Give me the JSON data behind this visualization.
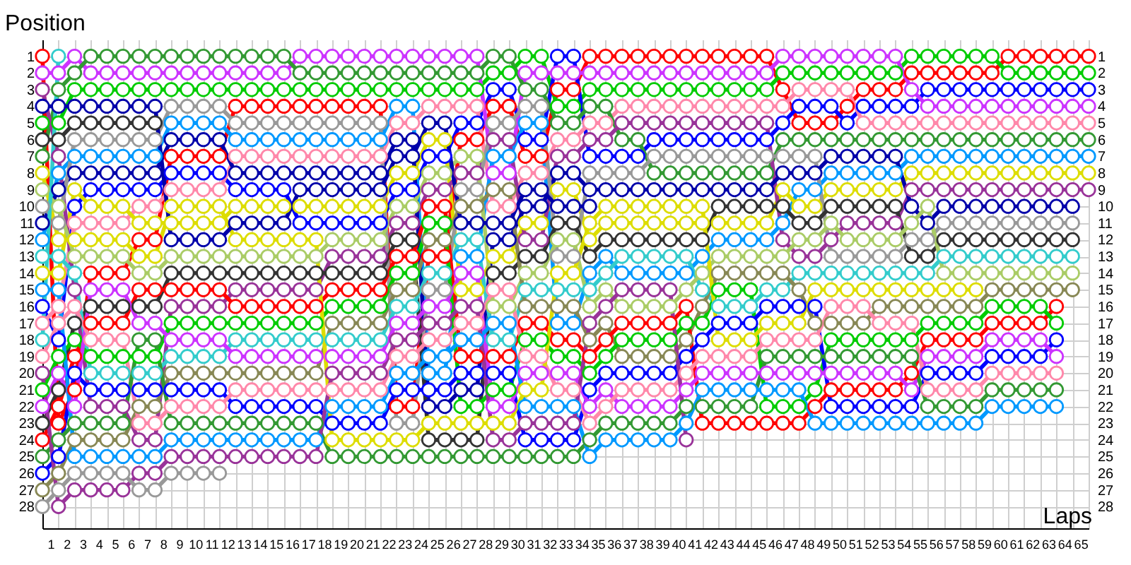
{
  "chart_data": {
    "type": "line",
    "xlabel": "Laps",
    "ylabel": "Position",
    "x": [
      0,
      1,
      2,
      3,
      4,
      5,
      6,
      7,
      8,
      9,
      10,
      11,
      12,
      13,
      14,
      15,
      16,
      17,
      18,
      19,
      20,
      21,
      22,
      23,
      24,
      25,
      26,
      27,
      28,
      29,
      30,
      31,
      32,
      33,
      34,
      35,
      36,
      37,
      38,
      39,
      40,
      41,
      42,
      43,
      44,
      45,
      46,
      47,
      48,
      49,
      50,
      51,
      52,
      53,
      54,
      55,
      56,
      57,
      58,
      59,
      60,
      61,
      62,
      63,
      64,
      65
    ],
    "xlim": [
      0,
      65
    ],
    "xticks": [
      {
        "value": 0,
        "label": null
      },
      {
        "value": 0.5,
        "label": "1"
      },
      {
        "value": 1,
        "label": null
      },
      {
        "value": 1.5,
        "label": "2"
      },
      {
        "value": 2,
        "label": null
      },
      {
        "value": 2.5,
        "label": "3"
      },
      {
        "value": 3,
        "label": null
      },
      {
        "value": 3.5,
        "label": "4"
      },
      {
        "value": 4,
        "label": null
      },
      {
        "value": 4.5,
        "label": "5"
      },
      {
        "value": 5,
        "label": null
      },
      {
        "value": 5.5,
        "label": "6"
      },
      {
        "value": 6,
        "label": null
      },
      {
        "value": 6.5,
        "label": "7"
      },
      {
        "value": 7,
        "label": null
      },
      {
        "value": 7.5,
        "label": "8"
      },
      {
        "value": 8,
        "label": null
      },
      {
        "value": 8.5,
        "label": "9"
      },
      {
        "value": 9,
        "label": null
      },
      {
        "value": 9.5,
        "label": "10"
      },
      {
        "value": 10,
        "label": null
      },
      {
        "value": 10.5,
        "label": "11"
      },
      {
        "value": 11,
        "label": null
      },
      {
        "value": 11.5,
        "label": "12"
      },
      {
        "value": 12,
        "label": null
      },
      {
        "value": 12.5,
        "label": "13"
      },
      {
        "value": 13,
        "label": null
      },
      {
        "value": 13.5,
        "label": "14"
      },
      {
        "value": 14,
        "label": null
      },
      {
        "value": 14.5,
        "label": "15"
      },
      {
        "value": 15,
        "label": null
      },
      {
        "value": 15.5,
        "label": "16"
      },
      {
        "value": 16,
        "label": null
      },
      {
        "value": 16.5,
        "label": "17"
      },
      {
        "value": 17,
        "label": null
      },
      {
        "value": 17.5,
        "label": "18"
      },
      {
        "value": 18,
        "label": null
      },
      {
        "value": 18.5,
        "label": "19"
      },
      {
        "value": 19,
        "label": null
      },
      {
        "value": 19.5,
        "label": "20"
      },
      {
        "value": 20,
        "label": null
      },
      {
        "value": 20.5,
        "label": "21"
      },
      {
        "value": 21,
        "label": null
      },
      {
        "value": 21.5,
        "label": "22"
      },
      {
        "value": 22,
        "label": null
      },
      {
        "value": 22.5,
        "label": "23"
      },
      {
        "value": 23,
        "label": null
      },
      {
        "value": 23.5,
        "label": "24"
      },
      {
        "value": 24,
        "label": null
      },
      {
        "value": 24.5,
        "label": "25"
      },
      {
        "value": 25,
        "label": null
      },
      {
        "value": 25.5,
        "label": "26"
      },
      {
        "value": 26,
        "label": null
      },
      {
        "value": 26.5,
        "label": "27"
      },
      {
        "value": 27,
        "label": null
      },
      {
        "value": 27.5,
        "label": "28"
      },
      {
        "value": 28,
        "label": null
      },
      {
        "value": 28.5,
        "label": "29"
      },
      {
        "value": 29,
        "label": null
      },
      {
        "value": 29.5,
        "label": "30"
      },
      {
        "value": 30,
        "label": null
      },
      {
        "value": 30.5,
        "label": "31"
      },
      {
        "value": 31,
        "label": null
      },
      {
        "value": 31.5,
        "label": "32"
      },
      {
        "value": 32,
        "label": null
      },
      {
        "value": 32.5,
        "label": "33"
      },
      {
        "value": 33,
        "label": null
      },
      {
        "value": 33.5,
        "label": "34"
      },
      {
        "value": 34,
        "label": null
      },
      {
        "value": 34.5,
        "label": "35"
      },
      {
        "value": 35,
        "label": null
      },
      {
        "value": 35.5,
        "label": "36"
      },
      {
        "value": 36,
        "label": null
      },
      {
        "value": 36.5,
        "label": "37"
      },
      {
        "value": 37,
        "label": null
      },
      {
        "value": 37.5,
        "label": "38"
      },
      {
        "value": 38,
        "label": null
      },
      {
        "value": 38.5,
        "label": "39"
      },
      {
        "value": 39,
        "label": null
      },
      {
        "value": 39.5,
        "label": "40"
      },
      {
        "value": 40,
        "label": null
      },
      {
        "value": 40.5,
        "label": "41"
      },
      {
        "value": 41,
        "label": null
      },
      {
        "value": 41.5,
        "label": "42"
      },
      {
        "value": 42,
        "label": null
      },
      {
        "value": 42.5,
        "label": "43"
      },
      {
        "value": 43,
        "label": null
      },
      {
        "value": 43.5,
        "label": "44"
      },
      {
        "value": 44,
        "label": null
      },
      {
        "value": 44.5,
        "label": "45"
      },
      {
        "value": 45,
        "label": null
      },
      {
        "value": 45.5,
        "label": "46"
      },
      {
        "value": 46,
        "label": null
      },
      {
        "value": 46.5,
        "label": "47"
      },
      {
        "value": 47,
        "label": null
      },
      {
        "value": 47.5,
        "label": "48"
      },
      {
        "value": 48,
        "label": null
      },
      {
        "value": 48.5,
        "label": "49"
      },
      {
        "value": 49,
        "label": null
      },
      {
        "value": 49.5,
        "label": "50"
      },
      {
        "value": 50,
        "label": null
      },
      {
        "value": 50.5,
        "label": "51"
      },
      {
        "value": 51,
        "label": null
      },
      {
        "value": 51.5,
        "label": "52"
      },
      {
        "value": 52,
        "label": null
      },
      {
        "value": 52.5,
        "label": "53"
      },
      {
        "value": 53,
        "label": null
      },
      {
        "value": 53.5,
        "label": "54"
      },
      {
        "value": 54,
        "label": null
      },
      {
        "value": 54.5,
        "label": "55"
      },
      {
        "value": 55,
        "label": null
      },
      {
        "value": 55.5,
        "label": "56"
      },
      {
        "value": 56,
        "label": null
      },
      {
        "value": 56.5,
        "label": "57"
      },
      {
        "value": 57,
        "label": null
      },
      {
        "value": 57.5,
        "label": "58"
      },
      {
        "value": 58,
        "label": null
      },
      {
        "value": 58.5,
        "label": "59"
      },
      {
        "value": 59,
        "label": null
      },
      {
        "value": 59.5,
        "label": "60"
      },
      {
        "value": 60,
        "label": null
      },
      {
        "value": 60.5,
        "label": "61"
      },
      {
        "value": 61,
        "label": null
      },
      {
        "value": 61.5,
        "label": "62"
      },
      {
        "value": 62,
        "label": null
      },
      {
        "value": 62.5,
        "label": "63"
      },
      {
        "value": 63,
        "label": null
      },
      {
        "value": 63.5,
        "label": "64"
      },
      {
        "value": 64,
        "label": null
      },
      {
        "value": 64.5,
        "label": "65"
      },
      {
        "value": 65,
        "label": null
      }
    ],
    "ylim": [
      29.3,
      0
    ],
    "yticks": [
      1,
      2,
      3,
      4,
      5,
      6,
      7,
      8,
      9,
      10,
      11,
      12,
      13,
      14,
      15,
      16,
      17,
      18,
      19,
      20,
      21,
      22,
      23,
      24,
      25,
      26,
      27,
      28
    ],
    "y2lim": [
      29.3,
      0
    ],
    "y2ticks": [
      1,
      2,
      3,
      4,
      5,
      6,
      7,
      8,
      9,
      10,
      11,
      12,
      13,
      14,
      15,
      16,
      17,
      18,
      19,
      20,
      21,
      22,
      23,
      24,
      25,
      26,
      27,
      28
    ],
    "grid": true,
    "marker": "circle",
    "line_style": "solid",
    "series": [
      {
        "color": "#ff0000",
        "values": [
          1,
          23,
          21,
          14,
          14,
          14,
          12,
          12,
          7,
          7,
          7,
          7,
          4,
          4,
          4,
          4,
          4,
          4,
          4,
          4,
          4,
          4,
          22,
          22,
          13,
          13,
          6,
          6,
          4,
          4,
          7,
          7,
          3,
          3,
          1,
          1,
          1,
          1,
          1,
          1,
          1,
          1,
          1,
          1,
          1,
          1,
          3,
          5,
          5,
          5,
          4,
          3,
          3,
          3,
          2,
          2,
          2,
          2,
          2,
          2,
          1,
          1,
          1,
          1,
          1,
          1
        ]
      },
      {
        "color": "#00cc00",
        "values": [
          5,
          5,
          3,
          3,
          3,
          3,
          3,
          3,
          3,
          3,
          3,
          3,
          3,
          3,
          3,
          3,
          3,
          3,
          3,
          3,
          3,
          3,
          3,
          3,
          3,
          3,
          3,
          3,
          2,
          2,
          1,
          1,
          4,
          4,
          3,
          3,
          3,
          3,
          3,
          3,
          3,
          3,
          3,
          3,
          3,
          3,
          2,
          2,
          2,
          2,
          2,
          2,
          2,
          2,
          1,
          1,
          1,
          1,
          1,
          1,
          2,
          2,
          2,
          2,
          2,
          2
        ]
      },
      {
        "color": "#0000ff",
        "values": [
          16,
          18,
          10,
          9,
          9,
          9,
          9,
          9,
          8,
          8,
          8,
          8,
          9,
          9,
          9,
          9,
          11,
          11,
          11,
          11,
          11,
          11,
          9,
          9,
          7,
          7,
          5,
          5,
          3,
          3,
          6,
          6,
          1,
          1,
          7,
          7,
          7,
          7,
          6,
          6,
          6,
          6,
          6,
          6,
          6,
          6,
          5,
          4,
          4,
          4,
          5,
          4,
          4,
          4,
          4,
          3,
          3,
          3,
          3,
          3,
          3,
          3,
          3,
          3,
          3,
          3
        ]
      },
      {
        "color": "#cc33ff",
        "values": [
          2,
          2,
          1,
          2,
          2,
          2,
          2,
          2,
          2,
          2,
          2,
          2,
          2,
          2,
          2,
          2,
          1,
          1,
          1,
          1,
          1,
          1,
          1,
          1,
          1,
          1,
          1,
          1,
          8,
          8,
          2,
          2,
          2,
          2,
          2,
          2,
          2,
          2,
          2,
          2,
          2,
          2,
          2,
          2,
          2,
          2,
          1,
          1,
          1,
          1,
          1,
          1,
          1,
          1,
          3,
          4,
          4,
          4,
          4,
          4,
          4,
          4,
          4,
          4,
          4,
          4
        ]
      },
      {
        "color": "#ff88aa",
        "values": [
          17,
          16,
          11,
          11,
          11,
          11,
          10,
          10,
          9,
          9,
          9,
          9,
          7,
          7,
          7,
          7,
          7,
          7,
          7,
          7,
          7,
          7,
          5,
          5,
          4,
          4,
          4,
          4,
          10,
          10,
          8,
          8,
          6,
          6,
          5,
          5,
          4,
          4,
          4,
          4,
          4,
          4,
          4,
          4,
          4,
          4,
          4,
          3,
          3,
          3,
          3,
          5,
          5,
          5,
          5,
          5,
          5,
          5,
          5,
          5,
          5,
          5,
          5,
          5,
          5,
          5
        ]
      },
      {
        "color": "#339933",
        "values": [
          7,
          3,
          2,
          1,
          1,
          1,
          1,
          1,
          1,
          1,
          1,
          1,
          1,
          1,
          1,
          1,
          2,
          2,
          2,
          2,
          2,
          2,
          2,
          2,
          2,
          2,
          2,
          2,
          1,
          1,
          3,
          3,
          5,
          5,
          4,
          4,
          6,
          6,
          8,
          8,
          8,
          8,
          8,
          8,
          8,
          8,
          6,
          6,
          6,
          6,
          6,
          6,
          6,
          6,
          6,
          6,
          6,
          6,
          6,
          6,
          6,
          6,
          6,
          6,
          6,
          6
        ]
      },
      {
        "color": "#0099ff",
        "values": [
          12,
          8,
          7,
          7,
          7,
          7,
          7,
          7,
          5,
          5,
          5,
          5,
          6,
          6,
          6,
          6,
          6,
          6,
          6,
          6,
          6,
          6,
          4,
          4,
          20,
          20,
          13,
          13,
          7,
          7,
          5,
          5,
          17,
          17,
          14,
          13,
          14,
          14,
          14,
          14,
          14,
          13,
          12,
          12,
          12,
          12,
          11,
          9,
          9,
          8,
          8,
          8,
          8,
          8,
          7,
          7,
          7,
          7,
          7,
          7,
          7,
          7,
          7,
          7,
          7,
          7
        ]
      },
      {
        "color": "#dddd00",
        "values": [
          14,
          14,
          9,
          10,
          10,
          10,
          11,
          11,
          11,
          11,
          11,
          11,
          10,
          10,
          10,
          10,
          10,
          10,
          10,
          10,
          10,
          10,
          8,
          8,
          6,
          6,
          15,
          15,
          13,
          13,
          11,
          11,
          9,
          9,
          12,
          11,
          11,
          11,
          11,
          11,
          11,
          11,
          11,
          11,
          11,
          11,
          9,
          10,
          10,
          9,
          9,
          9,
          9,
          9,
          8,
          8,
          8,
          8,
          8,
          8,
          8,
          8,
          8,
          8,
          8,
          8
        ]
      },
      {
        "color": "#993399",
        "values": [
          3,
          7,
          15,
          22,
          22,
          22,
          24,
          24,
          16,
          16,
          16,
          16,
          15,
          15,
          15,
          15,
          15,
          15,
          13,
          13,
          13,
          13,
          11,
          11,
          9,
          9,
          8,
          8,
          6,
          6,
          12,
          12,
          7,
          7,
          6,
          6,
          5,
          5,
          5,
          5,
          5,
          5,
          5,
          5,
          5,
          5,
          12,
          13,
          13,
          12,
          11,
          11,
          11,
          11,
          9,
          9,
          9,
          9,
          9,
          9,
          9,
          9,
          9,
          9,
          9,
          9
        ]
      },
      {
        "color": "#0000aa",
        "values": [
          11,
          9,
          8,
          8,
          8,
          8,
          8,
          8,
          6,
          6,
          6,
          6,
          8,
          8,
          8,
          8,
          8,
          8,
          8,
          8,
          8,
          8,
          6,
          6,
          22,
          22,
          21,
          21,
          12,
          12,
          10,
          10,
          8,
          8,
          9,
          9,
          9,
          9,
          9,
          9,
          9,
          9,
          9,
          9,
          9,
          9,
          8,
          8,
          8,
          7,
          7,
          7,
          7,
          7,
          10,
          11,
          10,
          10,
          10,
          10,
          10,
          10,
          10,
          10,
          10,
          null
        ]
      },
      {
        "color": "#999999",
        "values": [
          10,
          11,
          6,
          6,
          6,
          6,
          6,
          6,
          4,
          4,
          4,
          4,
          5,
          5,
          5,
          5,
          5,
          5,
          5,
          5,
          5,
          5,
          23,
          23,
          15,
          15,
          9,
          9,
          5,
          5,
          4,
          4,
          13,
          13,
          8,
          8,
          8,
          8,
          7,
          7,
          7,
          7,
          7,
          7,
          7,
          7,
          7,
          7,
          7,
          13,
          13,
          13,
          13,
          13,
          12,
          12,
          11,
          11,
          11,
          11,
          11,
          11,
          11,
          11,
          11,
          null
        ]
      },
      {
        "color": "#333333",
        "values": [
          23,
          21,
          17,
          16,
          16,
          16,
          16,
          16,
          14,
          14,
          14,
          14,
          14,
          14,
          14,
          14,
          14,
          14,
          14,
          14,
          14,
          14,
          12,
          12,
          24,
          24,
          24,
          24,
          14,
          14,
          13,
          13,
          11,
          11,
          13,
          12,
          12,
          12,
          12,
          12,
          12,
          12,
          10,
          10,
          10,
          10,
          10,
          11,
          11,
          10,
          10,
          10,
          10,
          10,
          13,
          13,
          12,
          12,
          12,
          12,
          12,
          12,
          12,
          12,
          12,
          null
        ]
      },
      {
        "color": "#33cccc",
        "values": [
          13,
          13,
          14,
          20,
          20,
          20,
          20,
          20,
          19,
          19,
          19,
          19,
          18,
          18,
          18,
          18,
          18,
          18,
          18,
          18,
          18,
          18,
          16,
          16,
          14,
          14,
          12,
          12,
          18,
          18,
          15,
          15,
          15,
          15,
          15,
          14,
          13,
          13,
          13,
          13,
          13,
          15,
          16,
          16,
          16,
          15,
          15,
          14,
          14,
          14,
          14,
          14,
          14,
          14,
          14,
          14,
          13,
          13,
          13,
          13,
          13,
          13,
          13,
          13,
          13,
          null
        ]
      },
      {
        "color": "#aacc66",
        "values": [
          9,
          10,
          13,
          13,
          13,
          13,
          14,
          14,
          13,
          13,
          13,
          13,
          13,
          13,
          13,
          13,
          13,
          13,
          12,
          12,
          12,
          12,
          10,
          10,
          8,
          8,
          7,
          7,
          16,
          16,
          14,
          14,
          12,
          12,
          16,
          15,
          16,
          16,
          16,
          16,
          15,
          14,
          13,
          13,
          13,
          13,
          13,
          12,
          12,
          11,
          12,
          12,
          12,
          12,
          11,
          10,
          14,
          14,
          14,
          14,
          14,
          14,
          14,
          14,
          14,
          null
        ]
      },
      {
        "color": "#888855",
        "values": [
          27,
          26,
          24,
          24,
          24,
          24,
          22,
          22,
          20,
          20,
          20,
          20,
          20,
          20,
          20,
          20,
          20,
          20,
          17,
          17,
          17,
          17,
          15,
          15,
          12,
          12,
          10,
          10,
          9,
          9,
          16,
          16,
          16,
          16,
          18,
          17,
          19,
          19,
          19,
          19,
          18,
          16,
          14,
          14,
          14,
          14,
          14,
          15,
          17,
          17,
          17,
          17,
          16,
          16,
          16,
          16,
          16,
          16,
          16,
          15,
          15,
          15,
          15,
          15,
          15,
          null
        ]
      },
      {
        "color": "#ff0000",
        "values": [
          24,
          22,
          19,
          17,
          17,
          17,
          15,
          15,
          15,
          15,
          15,
          15,
          16,
          16,
          16,
          16,
          16,
          16,
          15,
          15,
          15,
          15,
          13,
          13,
          10,
          10,
          19,
          19,
          19,
          19,
          17,
          17,
          18,
          18,
          19,
          18,
          17,
          17,
          17,
          17,
          16,
          23,
          23,
          23,
          23,
          23,
          23,
          23,
          22,
          21,
          21,
          21,
          21,
          21,
          20,
          18,
          18,
          18,
          18,
          17,
          17,
          17,
          17,
          16,
          null,
          null
        ]
      },
      {
        "color": "#00cc00",
        "values": [
          21,
          19,
          18,
          19,
          19,
          19,
          19,
          19,
          17,
          17,
          17,
          17,
          17,
          17,
          17,
          17,
          17,
          17,
          16,
          16,
          16,
          16,
          14,
          14,
          11,
          11,
          22,
          22,
          21,
          21,
          18,
          18,
          19,
          19,
          20,
          19,
          18,
          18,
          18,
          18,
          17,
          17,
          15,
          15,
          15,
          22,
          22,
          22,
          21,
          18,
          18,
          18,
          18,
          18,
          18,
          17,
          17,
          17,
          17,
          16,
          16,
          16,
          16,
          17,
          null,
          null
        ]
      },
      {
        "color": "#0000ff",
        "values": [
          26,
          25,
          20,
          21,
          21,
          21,
          21,
          21,
          21,
          21,
          21,
          21,
          22,
          22,
          22,
          22,
          22,
          22,
          23,
          23,
          23,
          23,
          21,
          21,
          21,
          21,
          20,
          20,
          20,
          20,
          24,
          24,
          24,
          24,
          21,
          20,
          20,
          20,
          20,
          20,
          19,
          18,
          17,
          17,
          17,
          16,
          16,
          16,
          16,
          22,
          22,
          22,
          22,
          22,
          22,
          20,
          20,
          20,
          20,
          19,
          19,
          19,
          19,
          18,
          null,
          null
        ]
      },
      {
        "color": "#cc33ff",
        "values": [
          22,
          20,
          22,
          15,
          15,
          15,
          17,
          17,
          18,
          18,
          18,
          18,
          19,
          19,
          19,
          19,
          19,
          19,
          19,
          19,
          19,
          19,
          17,
          17,
          16,
          16,
          14,
          14,
          22,
          22,
          20,
          20,
          20,
          20,
          22,
          21,
          22,
          22,
          22,
          22,
          21,
          20,
          20,
          20,
          20,
          20,
          20,
          20,
          20,
          20,
          20,
          20,
          20,
          20,
          21,
          19,
          19,
          19,
          19,
          18,
          18,
          18,
          18,
          19,
          null,
          null
        ]
      },
      {
        "color": "#ff88aa",
        "values": [
          19,
          17,
          16,
          18,
          18,
          18,
          23,
          23,
          22,
          22,
          22,
          22,
          21,
          21,
          21,
          21,
          21,
          21,
          21,
          21,
          21,
          21,
          19,
          19,
          18,
          18,
          17,
          17,
          15,
          15,
          19,
          19,
          21,
          21,
          23,
          22,
          21,
          21,
          21,
          21,
          20,
          19,
          19,
          19,
          19,
          18,
          18,
          18,
          18,
          16,
          16,
          16,
          17,
          17,
          17,
          21,
          21,
          21,
          21,
          20,
          20,
          20,
          20,
          20,
          null,
          null
        ]
      },
      {
        "color": "#339933",
        "values": [
          25,
          24,
          23,
          23,
          23,
          23,
          18,
          18,
          23,
          23,
          23,
          23,
          23,
          23,
          23,
          23,
          23,
          23,
          25,
          25,
          25,
          25,
          25,
          25,
          25,
          25,
          25,
          25,
          25,
          25,
          25,
          25,
          25,
          25,
          24,
          23,
          23,
          23,
          23,
          23,
          22,
          22,
          22,
          22,
          22,
          19,
          19,
          19,
          19,
          19,
          19,
          19,
          19,
          19,
          19,
          22,
          22,
          22,
          22,
          21,
          21,
          21,
          21,
          21,
          null,
          null
        ]
      },
      {
        "color": "#0099ff",
        "values": [
          15,
          15,
          25,
          25,
          25,
          25,
          25,
          25,
          24,
          24,
          24,
          24,
          24,
          24,
          24,
          24,
          24,
          24,
          22,
          22,
          22,
          22,
          20,
          20,
          19,
          19,
          18,
          18,
          17,
          17,
          22,
          22,
          22,
          22,
          25,
          24,
          24,
          24,
          24,
          24,
          23,
          21,
          21,
          21,
          21,
          21,
          21,
          21,
          23,
          23,
          23,
          23,
          23,
          23,
          23,
          23,
          23,
          23,
          23,
          22,
          22,
          22,
          22,
          22,
          null,
          null
        ]
      },
      {
        "color": "#dddd00",
        "values": [
          8,
          12,
          12,
          12,
          12,
          12,
          13,
          13,
          10,
          10,
          10,
          10,
          12,
          12,
          12,
          12,
          12,
          12,
          24,
          24,
          24,
          24,
          24,
          24,
          23,
          23,
          23,
          23,
          23,
          23,
          21,
          21,
          14,
          14,
          11,
          10,
          10,
          10,
          10,
          10,
          10,
          10,
          18,
          18,
          18,
          17,
          17,
          17,
          15,
          15,
          15,
          15,
          15,
          15,
          15,
          15,
          15,
          15,
          15,
          null,
          null,
          null,
          null,
          null,
          null,
          null
        ]
      },
      {
        "color": "#0000aa",
        "values": [
          4,
          4,
          4,
          4,
          4,
          4,
          4,
          4,
          12,
          12,
          12,
          12,
          11,
          11,
          11,
          11,
          9,
          9,
          9,
          9,
          9,
          9,
          7,
          7,
          5,
          5,
          11,
          11,
          11,
          11,
          9,
          9,
          10,
          10,
          10,
          null,
          null,
          null,
          null,
          null,
          null,
          null,
          null,
          null,
          null,
          null,
          null,
          null,
          null,
          null,
          null,
          null,
          null,
          null,
          null,
          null,
          null,
          null,
          null,
          null,
          null,
          null,
          null,
          null,
          null,
          null
        ]
      },
      {
        "color": "#333333",
        "values": [
          6,
          6,
          5,
          5,
          5,
          5,
          5,
          5,
          null,
          null,
          null,
          null,
          null,
          null,
          null,
          null,
          null,
          null,
          null,
          null,
          null,
          null,
          null,
          null,
          null,
          null,
          null,
          null,
          null,
          null,
          null,
          null,
          null,
          null,
          null,
          null,
          null,
          null,
          null,
          null,
          null,
          null,
          null,
          null,
          null,
          null,
          null,
          null,
          null,
          null,
          null,
          null,
          null,
          null,
          null,
          null,
          null,
          null,
          null,
          null,
          null,
          null,
          null,
          null,
          null,
          null
        ]
      },
      {
        "color": "#993399",
        "values": [
          20,
          28,
          27,
          27,
          27,
          27,
          26,
          26,
          25,
          25,
          25,
          25,
          25,
          25,
          25,
          25,
          25,
          25,
          20,
          20,
          20,
          20,
          18,
          18,
          17,
          17,
          16,
          16,
          24,
          24,
          23,
          23,
          23,
          23,
          17,
          16,
          15,
          15,
          15,
          15,
          24,
          null,
          null,
          null,
          null,
          null,
          null,
          null,
          null,
          null,
          null,
          null,
          null,
          null,
          null,
          null,
          null,
          null,
          null,
          null,
          null,
          null,
          null,
          null,
          null,
          null
        ]
      },
      {
        "color": "#999999",
        "values": [
          28,
          27,
          26,
          26,
          26,
          26,
          27,
          27,
          26,
          26,
          26,
          26,
          null,
          null,
          null,
          null,
          null,
          null,
          null,
          null,
          null,
          null,
          null,
          null,
          null,
          null,
          null,
          null,
          null,
          null,
          null,
          null,
          null,
          null,
          null,
          null,
          null,
          null,
          null,
          null,
          null,
          null,
          null,
          null,
          null,
          null,
          null,
          null,
          null,
          null,
          null,
          null,
          null,
          null,
          null,
          null,
          null,
          null,
          null,
          null,
          null,
          null,
          null,
          null,
          null,
          null
        ]
      },
      {
        "color": "#33cccc",
        "values": [
          18,
          1,
          null,
          null,
          null,
          null,
          null,
          null,
          null,
          null,
          null,
          null,
          null,
          null,
          null,
          null,
          null,
          null,
          null,
          null,
          null,
          null,
          null,
          null,
          null,
          null,
          null,
          null,
          null,
          null,
          null,
          null,
          null,
          null,
          null,
          null,
          null,
          null,
          null,
          null,
          null,
          null,
          null,
          null,
          null,
          null,
          null,
          null,
          null,
          null,
          null,
          null,
          null,
          null,
          null,
          null,
          null,
          null,
          null,
          null,
          null,
          null,
          null,
          null,
          null,
          null
        ]
      }
    ]
  }
}
